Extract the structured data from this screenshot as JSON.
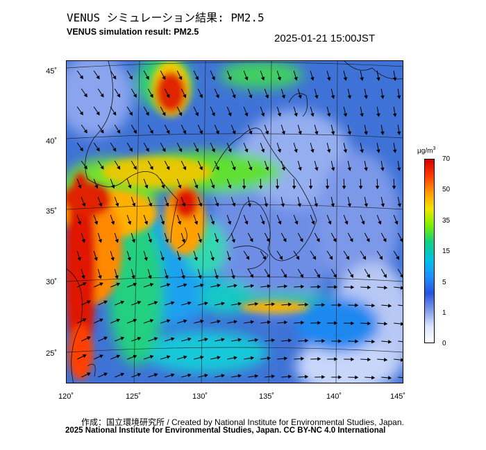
{
  "title_ja": "VENUS シミュレーション結果: PM2.5",
  "title_en": "VENUS simulation result: PM2.5",
  "timestamp": "2025-01-21 15:00JST",
  "map": {
    "lat_labels": [
      "45˚",
      "40˚",
      "35˚",
      "30˚",
      "25˚"
    ],
    "lon_labels": [
      "120˚",
      "125˚",
      "130˚",
      "135˚",
      "140˚",
      "145˚"
    ]
  },
  "colorbar": {
    "unit_main": "μg/m",
    "unit_sup": "3",
    "ticks": [
      "70",
      "50",
      "35",
      "15",
      "5",
      "1",
      "0"
    ],
    "colors": [
      "#d40000",
      "#ff3a00",
      "#ff9a00",
      "#f2e600",
      "#7cf000",
      "#12d080",
      "#00c0e6",
      "#1e90ff",
      "#2555e0",
      "#7b98e8",
      "#d8e4ff",
      "#ffffff"
    ]
  },
  "credit_line1": "作成：国立環境研究所 / Created by National Institute for Environmental Studies, Japan.",
  "credit_line2": "2025 National Institute for Environmental Studies, Japan. CC BY-NC 4.0 International"
}
